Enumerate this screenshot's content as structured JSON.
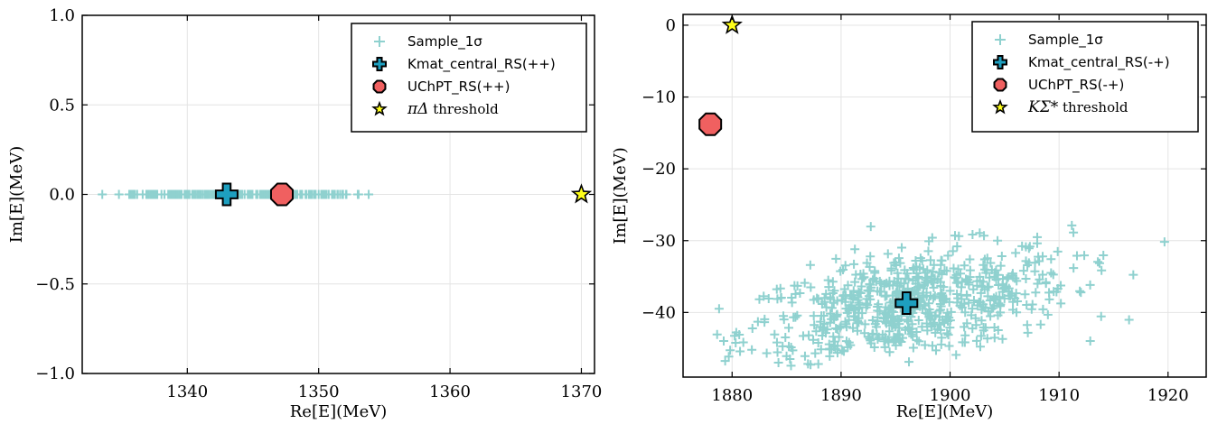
{
  "chart_data": [
    {
      "type": "scatter",
      "xlabel": "Re[E](MeV)",
      "ylabel": "Im[E](MeV)",
      "xlim": [
        1332,
        1371
      ],
      "ylim": [
        -1.0,
        1.0
      ],
      "xticks": [
        1340,
        1350,
        1360,
        1370
      ],
      "yticks": [
        -1.0,
        -0.5,
        0.0,
        0.5,
        1.0
      ],
      "xtick_labels": [
        "1340",
        "1350",
        "1360",
        "1370"
      ],
      "ytick_labels": [
        "−1.0",
        "−0.5",
        "0.0",
        "0.5",
        "1.0"
      ],
      "grid": true,
      "legend_position": "top-right",
      "series": [
        {
          "name": "Sample_1σ",
          "marker": "plus",
          "color": "#8fd1cf",
          "x_range": [
            1333,
            1354
          ],
          "y": 0.0,
          "dense_range": [
            1335.5,
            1351.5
          ]
        },
        {
          "name": "Kmat_central_RS(++)",
          "marker": "cross",
          "color": "#1e9fbf",
          "x": [
            1343.0
          ],
          "y": [
            0.0
          ]
        },
        {
          "name": "UChPT_RS(++)",
          "marker": "octagon",
          "color": "#f06060",
          "x": [
            1347.2
          ],
          "y": [
            0.0
          ]
        },
        {
          "name_prefix": "πΔ",
          "name_suffix": " threshold",
          "marker": "star",
          "color": "#ffff1a",
          "x": [
            1370.0
          ],
          "y": [
            0.0
          ]
        }
      ]
    },
    {
      "type": "scatter",
      "xlabel": "Re[E](MeV)",
      "ylabel": "Im[E](MeV)",
      "xlim": [
        1875.5,
        1923.5
      ],
      "ylim": [
        -49,
        1.5
      ],
      "xticks": [
        1880,
        1890,
        1900,
        1910,
        1920
      ],
      "yticks": [
        -40,
        -30,
        -20,
        -10,
        0
      ],
      "xtick_labels": [
        "1880",
        "1890",
        "1900",
        "1910",
        "1920"
      ],
      "ytick_labels": [
        "−40",
        "−30",
        "−20",
        "−10",
        "0"
      ],
      "grid": true,
      "legend_position": "top-right",
      "series": [
        {
          "name": "Sample_1σ",
          "marker": "plus",
          "color": "#8fd1cf",
          "cloud": {
            "count": 700,
            "x_range": [
              1876.5,
              1923
            ],
            "y_range": [
              -47.5,
              -27
            ],
            "center": [
              1896,
              -39
            ],
            "slope": 0.42
          }
        },
        {
          "name": "Kmat_central_RS(-+)",
          "marker": "cross",
          "color": "#1e9fbf",
          "x": [
            1896.0
          ],
          "y": [
            -38.7
          ]
        },
        {
          "name": "UChPT_RS(-+)",
          "marker": "octagon",
          "color": "#f06060",
          "x": [
            1878.0
          ],
          "y": [
            -13.8
          ]
        },
        {
          "name_prefix": "KΣ*",
          "name_suffix": " threshold",
          "marker": "star",
          "color": "#ffff1a",
          "x": [
            1880.0
          ],
          "y": [
            0.0
          ]
        }
      ]
    }
  ]
}
